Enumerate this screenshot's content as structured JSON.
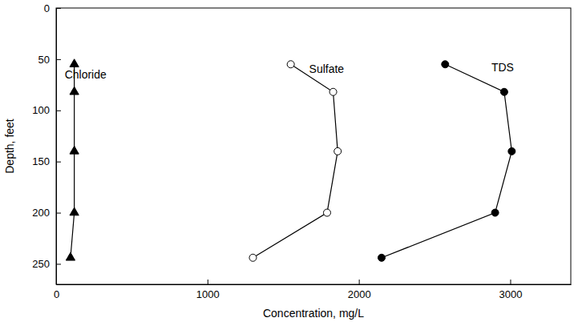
{
  "chart_data": {
    "type": "line",
    "x_label": "Concentration, mg/L",
    "y_label": "Depth, feet",
    "xlim": [
      0,
      3400
    ],
    "xticks": [
      0,
      1000,
      2000,
      3000
    ],
    "ylim": [
      270,
      0
    ],
    "yticks": [
      0,
      50,
      100,
      150,
      200,
      250
    ],
    "grid": false,
    "series": [
      {
        "name": "Chloride",
        "color": "#000000",
        "marker": "triangle",
        "line_style": "solid",
        "x": [
          120,
          120,
          120,
          120,
          95
        ],
        "values": [
          55,
          82,
          140,
          200,
          244
        ]
      },
      {
        "name": "Sulfate",
        "color": "#000000",
        "marker": "circle-open",
        "line_style": "solid",
        "x": [
          1550,
          1830,
          1860,
          1790,
          1300
        ],
        "values": [
          55,
          82,
          140,
          200,
          244
        ]
      },
      {
        "name": "TDS",
        "color": "#000000",
        "marker": "circle",
        "line_style": "solid",
        "x": [
          2570,
          2960,
          3010,
          2900,
          2150
        ],
        "values": [
          55,
          82,
          140,
          200,
          244
        ]
      }
    ]
  }
}
